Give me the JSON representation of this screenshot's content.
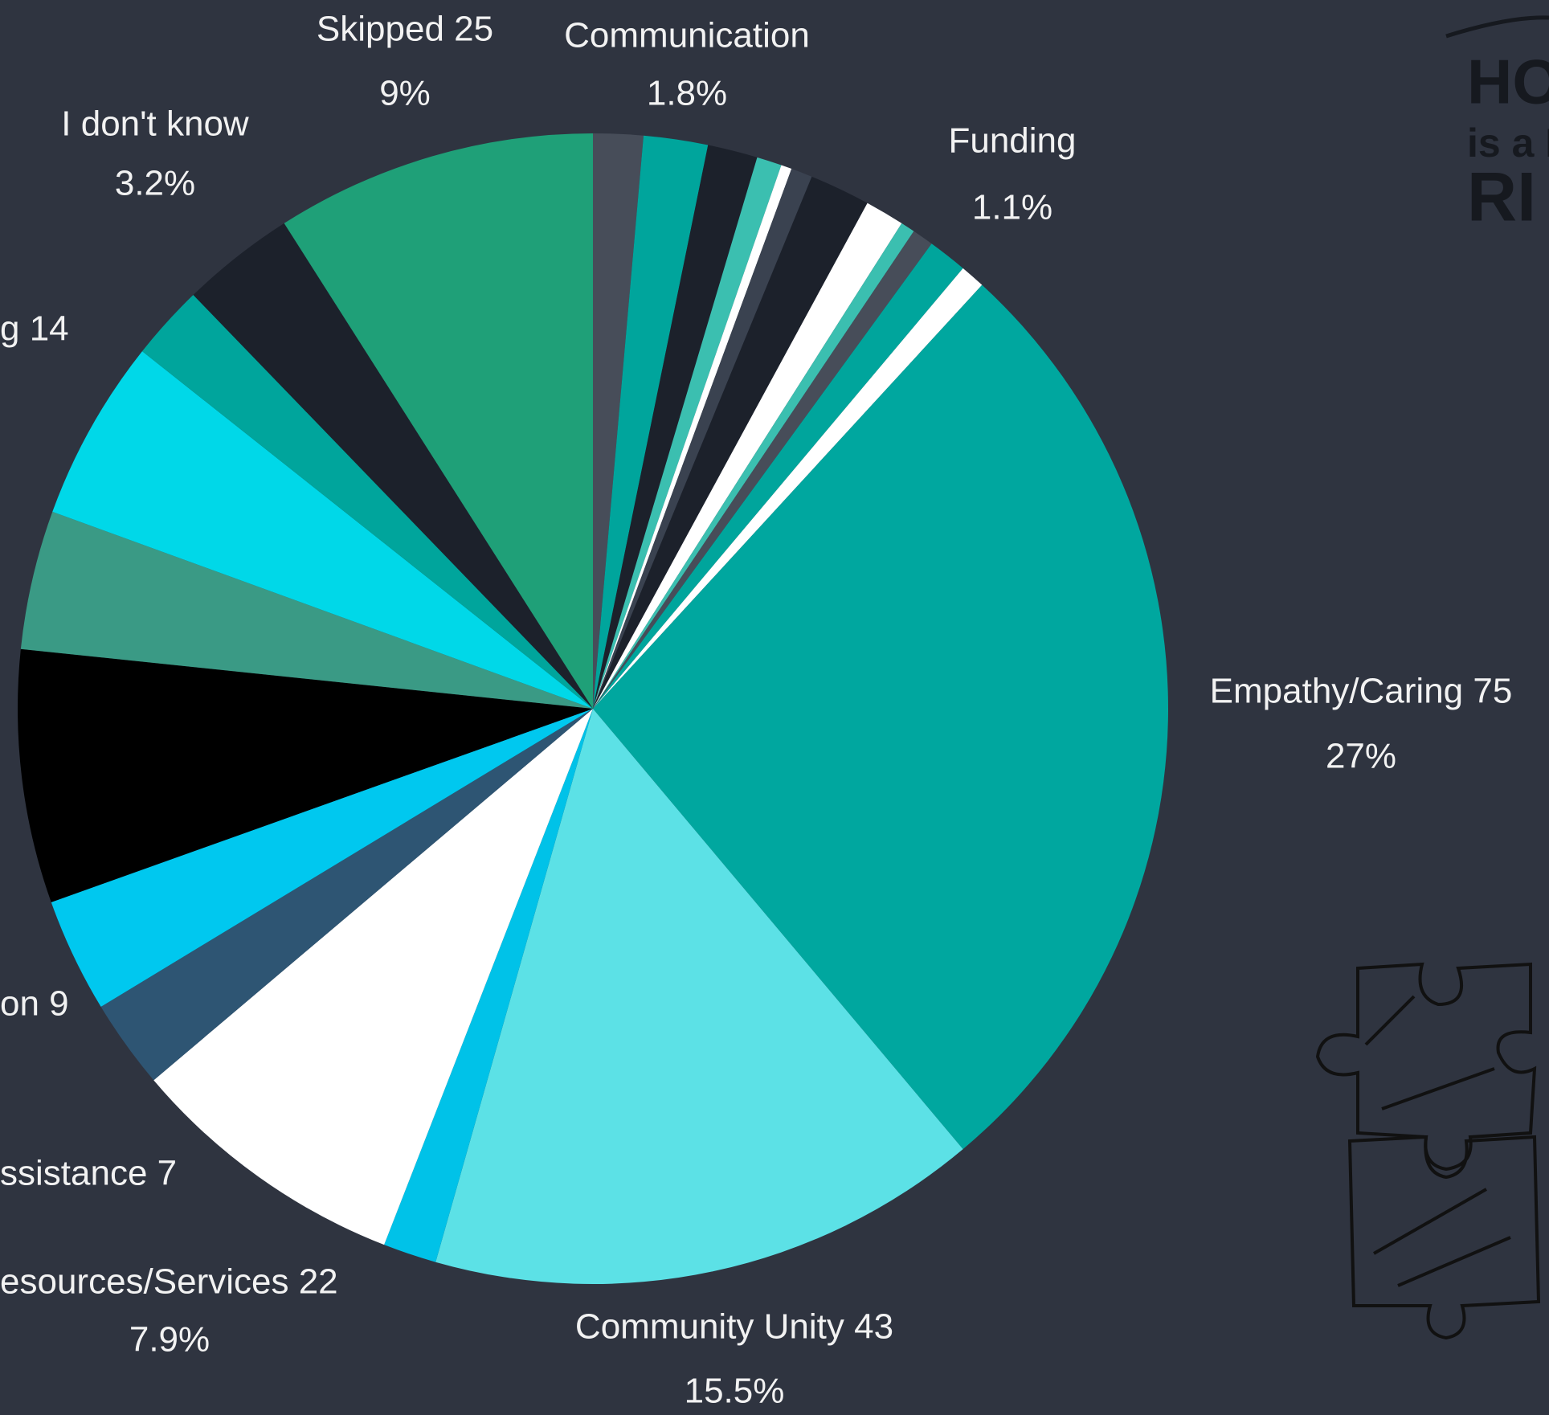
{
  "chart_data": {
    "type": "pie",
    "categories": [
      null,
      "Communication",
      null,
      null,
      null,
      null,
      null,
      null,
      null,
      null,
      "Funding",
      null,
      "Empathy/Caring 75",
      "Community Unity 43",
      null,
      "esources/Services 22",
      "ssistance 7",
      "on 9",
      null,
      null,
      "g 14",
      null,
      "I don't know",
      "Skipped 25"
    ],
    "values": [
      1.4,
      1.8,
      1.4,
      0.7,
      0.3,
      0.6,
      1.7,
      1.1,
      0.4,
      0.6,
      1.1,
      0.7,
      27,
      15.5,
      1.5,
      7.9,
      2.5,
      3.2,
      7.1,
      3.9,
      5.1,
      2.1,
      3.2,
      9
    ],
    "value_labels": [
      null,
      "1.8%",
      null,
      null,
      null,
      null,
      null,
      null,
      null,
      null,
      "1.1%",
      null,
      "27%",
      "15.5%",
      null,
      "7.9%",
      null,
      null,
      null,
      null,
      null,
      null,
      "3.2%",
      "9%"
    ],
    "colors": [
      "#474d59",
      "#00a59c",
      "#1c212b",
      "#3bbfb0",
      "#ffffff",
      "#3a4250",
      "#1c212b",
      "#ffffff",
      "#3bbfb0",
      "#474d59",
      "#00a59c",
      "#ffffff",
      "#00a79f",
      "#5ce1e6",
      "#00c2e8",
      "#ffffff",
      "#2e5573",
      "#00c8ef",
      "#000000",
      "#3a9a85",
      "#00d8e8",
      "#00a59c",
      "#1c212b",
      "#1fa078"
    ]
  },
  "logo": {
    "line1": "HOU",
    "line2": "is a H",
    "line3": "RI"
  }
}
